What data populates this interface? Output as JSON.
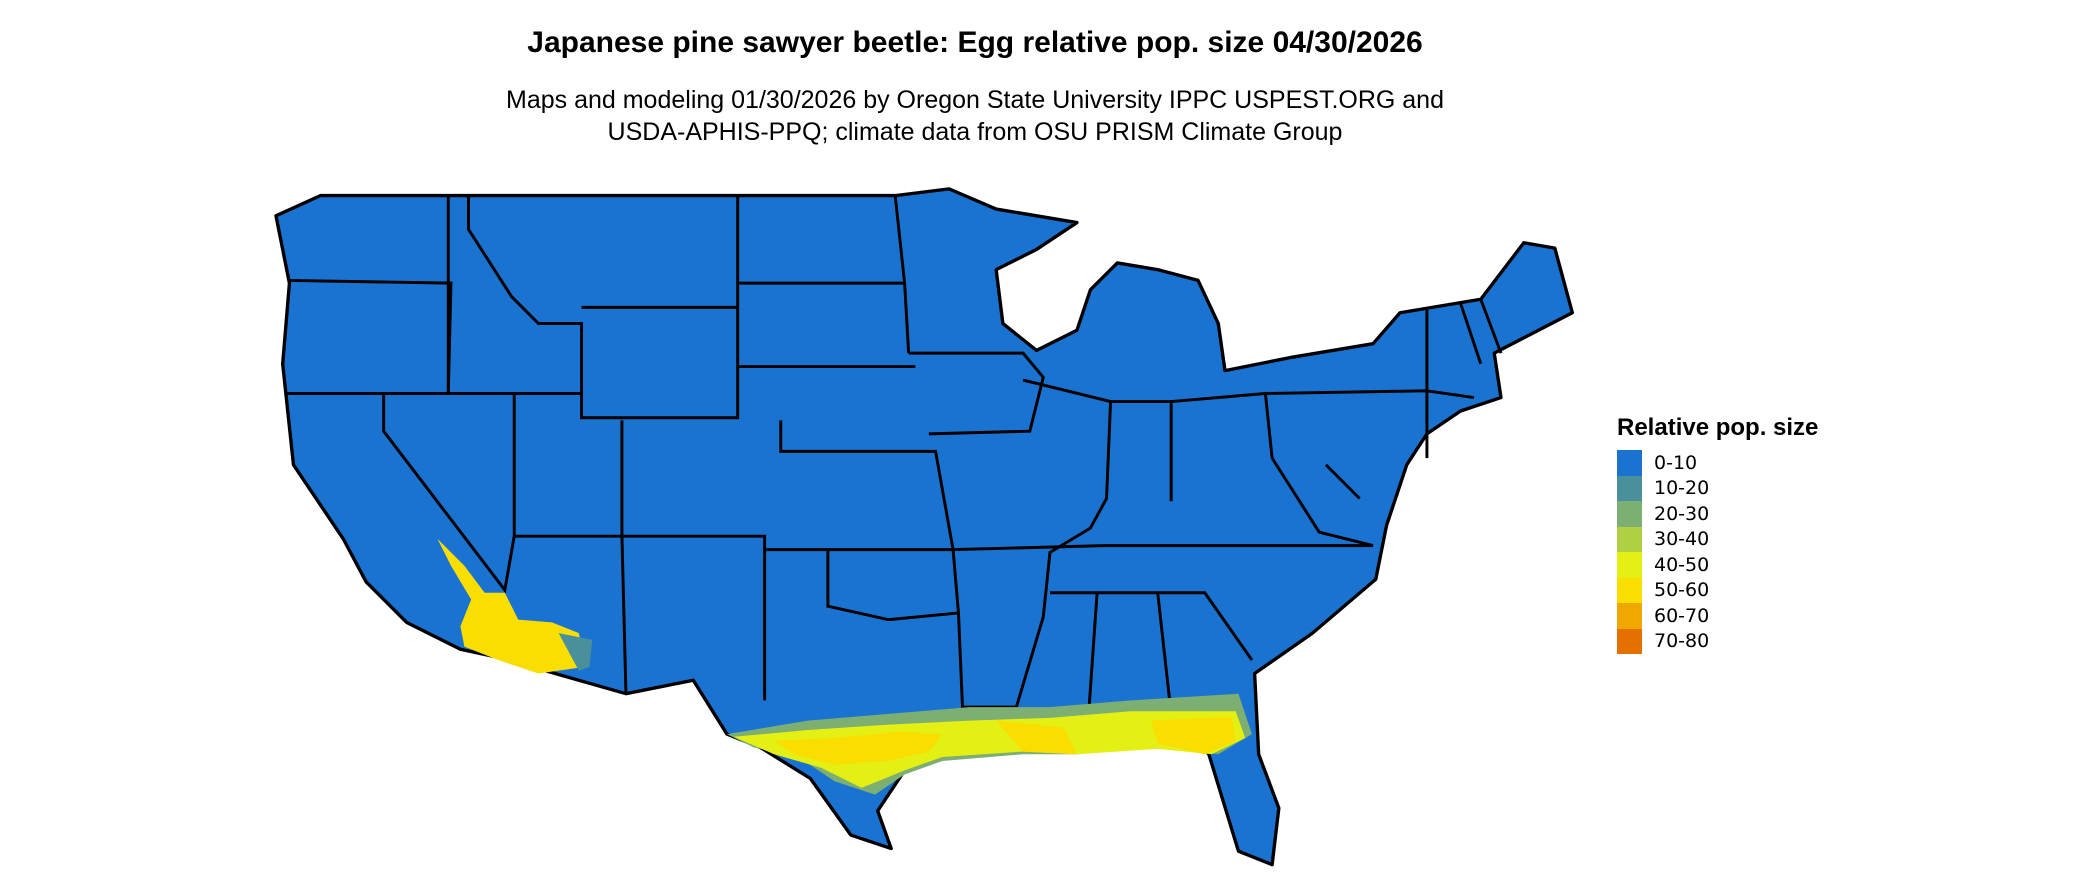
{
  "title": "Japanese pine sawyer beetle: Egg relative pop. size 04/30/2026",
  "subtitle_line1": "Maps and modeling 01/30/2026 by Oregon State University IPPC USPEST.ORG and",
  "subtitle_line2": "USDA-APHIS-PPQ; climate data from OSU PRISM Climate Group",
  "legend": {
    "title": "Relative pop. size",
    "items": [
      {
        "label": "0-10",
        "color": "#1a73d0"
      },
      {
        "label": "10-20",
        "color": "#4a8f9c"
      },
      {
        "label": "20-30",
        "color": "#7dae72"
      },
      {
        "label": "30-40",
        "color": "#b0d044"
      },
      {
        "label": "40-50",
        "color": "#e4ef14"
      },
      {
        "label": "50-60",
        "color": "#f9de00"
      },
      {
        "label": "60-70",
        "color": "#f0a800"
      },
      {
        "label": "70-80",
        "color": "#e57000"
      }
    ]
  }
}
